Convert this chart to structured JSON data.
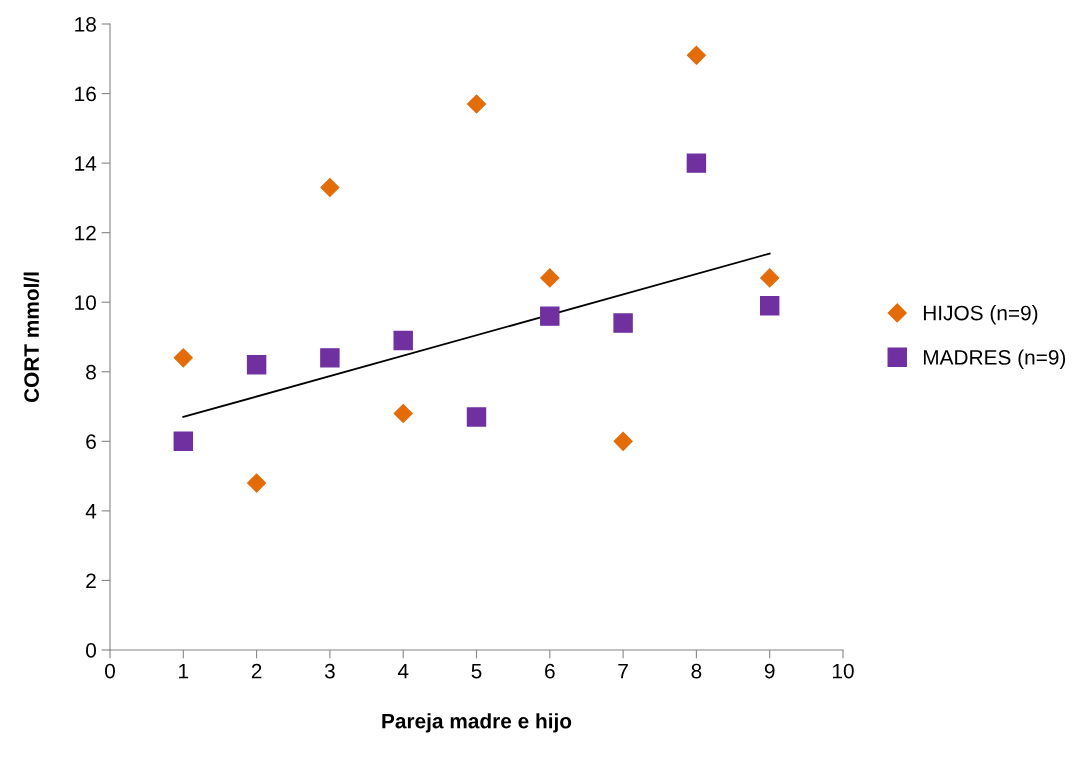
{
  "chart_data": {
    "type": "scatter",
    "xlabel": "Pareja madre e hijo",
    "ylabel": "CORT mmol/l",
    "x": [
      1,
      2,
      3,
      4,
      5,
      6,
      7,
      8,
      9
    ],
    "series": [
      {
        "name": "HIJOS (n=9)",
        "color": "#e36c09",
        "marker": "diamond",
        "values": [
          8.4,
          4.8,
          13.3,
          6.8,
          15.7,
          10.7,
          6.0,
          17.1,
          10.7
        ]
      },
      {
        "name": "MADRES (n=9)",
        "color": "#7030a0",
        "marker": "square",
        "values": [
          6.0,
          8.2,
          8.4,
          8.9,
          6.7,
          9.6,
          9.4,
          14.0,
          9.9
        ]
      },
      {
        "type": "line",
        "color": "#000000",
        "marker": "none",
        "x": [
          1,
          9
        ],
        "values": [
          6.7,
          11.4
        ]
      }
    ],
    "xlim": [
      0,
      10
    ],
    "xticks": [
      0,
      1,
      2,
      3,
      4,
      5,
      6,
      7,
      8,
      9,
      10
    ],
    "ylim": [
      0,
      18
    ],
    "yticks": [
      0,
      2,
      4,
      6,
      8,
      10,
      12,
      14,
      16,
      18
    ],
    "grid": false,
    "legend": "right"
  }
}
